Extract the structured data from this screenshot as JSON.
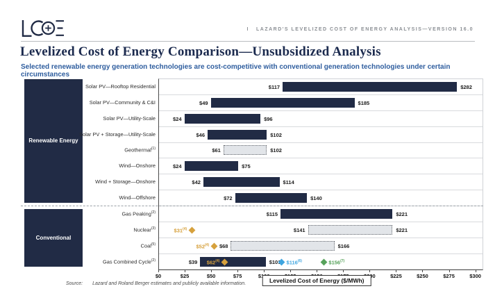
{
  "header": {
    "logo_name": "LCOE logo",
    "tagline_prefix": "I",
    "tagline": "LAZARD'S LEVELIZED COST OF ENERGY ANALYSIS—VERSION 16.0"
  },
  "title": "Levelized Cost of Energy Comparison—Unsubsidized Analysis",
  "subtitle": "Selected renewable energy generation technologies are cost-competitive with conventional generation technologies under certain circumstances",
  "source": {
    "label": "Source:",
    "text": "Lazard and Roland Berger estimates and publicly available information."
  },
  "colors": {
    "navy": "#212b45",
    "gray_fill": "#e2e5e9",
    "gray_dot_border": "#63676d",
    "gold": "#d6a13d",
    "blue": "#3fa5df",
    "green": "#57a25b"
  },
  "chart_data": {
    "type": "bar",
    "orientation": "horizontal-range",
    "xlabel": "Levelized Cost of Energy ($/MWh)",
    "xlim": [
      0,
      300
    ],
    "tick_prefix": "$",
    "ticks": [
      0,
      25,
      50,
      75,
      100,
      125,
      150,
      175,
      200,
      225,
      250,
      275,
      300
    ],
    "value_prefix": "$",
    "groups": [
      {
        "name": "Renewable Energy",
        "rows": [
          {
            "label": "Solar PV—Rooftop Residential",
            "sup": "",
            "low": 117,
            "high": 282,
            "style": "navy",
            "markers": []
          },
          {
            "label": "Solar PV—Community & C&I",
            "sup": "",
            "low": 49,
            "high": 185,
            "style": "navy",
            "markers": []
          },
          {
            "label": "Solar PV—Utility-Scale",
            "sup": "",
            "low": 24,
            "high": 96,
            "style": "navy",
            "markers": []
          },
          {
            "label": "Solar PV + Storage—Utility-Scale",
            "sup": "",
            "low": 46,
            "high": 102,
            "style": "navy",
            "markers": []
          },
          {
            "label": "Geothermal",
            "sup": "(1)",
            "low": 61,
            "high": 102,
            "style": "grayDashed",
            "markers": []
          },
          {
            "label": "Wind—Onshore",
            "sup": "",
            "low": 24,
            "high": 75,
            "style": "navy",
            "markers": []
          },
          {
            "label": "Wind + Storage—Onshore",
            "sup": "",
            "low": 42,
            "high": 114,
            "style": "navy",
            "markers": []
          },
          {
            "label": "Wind—Offshore",
            "sup": "",
            "low": 72,
            "high": 140,
            "style": "navy",
            "markers": []
          }
        ]
      },
      {
        "name": "Conventional",
        "rows": [
          {
            "label": "Gas Peaking",
            "sup": "(2)",
            "low": 115,
            "high": 221,
            "style": "navy",
            "markers": []
          },
          {
            "label": "Nuclear",
            "sup": "(3)",
            "low": 141,
            "high": 221,
            "style": "grayDashed",
            "markers": [
              {
                "value": 31,
                "label": "$31",
                "sup": "(4)",
                "color": "gold",
                "label_side": "left"
              }
            ]
          },
          {
            "label": "Coal",
            "sup": "(5)",
            "low": 68,
            "high": 166,
            "style": "grayDashed",
            "markers": [
              {
                "value": 52,
                "label": "$52",
                "sup": "(4)",
                "color": "gold",
                "label_side": "left"
              }
            ]
          },
          {
            "label": "Gas Combined Cycle",
            "sup": "(2)",
            "low": 39,
            "high": 101,
            "style": "navy",
            "markers": [
              {
                "value": 62,
                "label": "$62",
                "sup": "(4)",
                "color": "gold",
                "label_side": "left"
              },
              {
                "value": 116,
                "label": "$116",
                "sup": "(6)",
                "color": "blue",
                "label_side": "right"
              },
              {
                "value": 156,
                "label": "$156",
                "sup": "(7)",
                "color": "green",
                "label_side": "right"
              }
            ]
          }
        ]
      }
    ]
  }
}
